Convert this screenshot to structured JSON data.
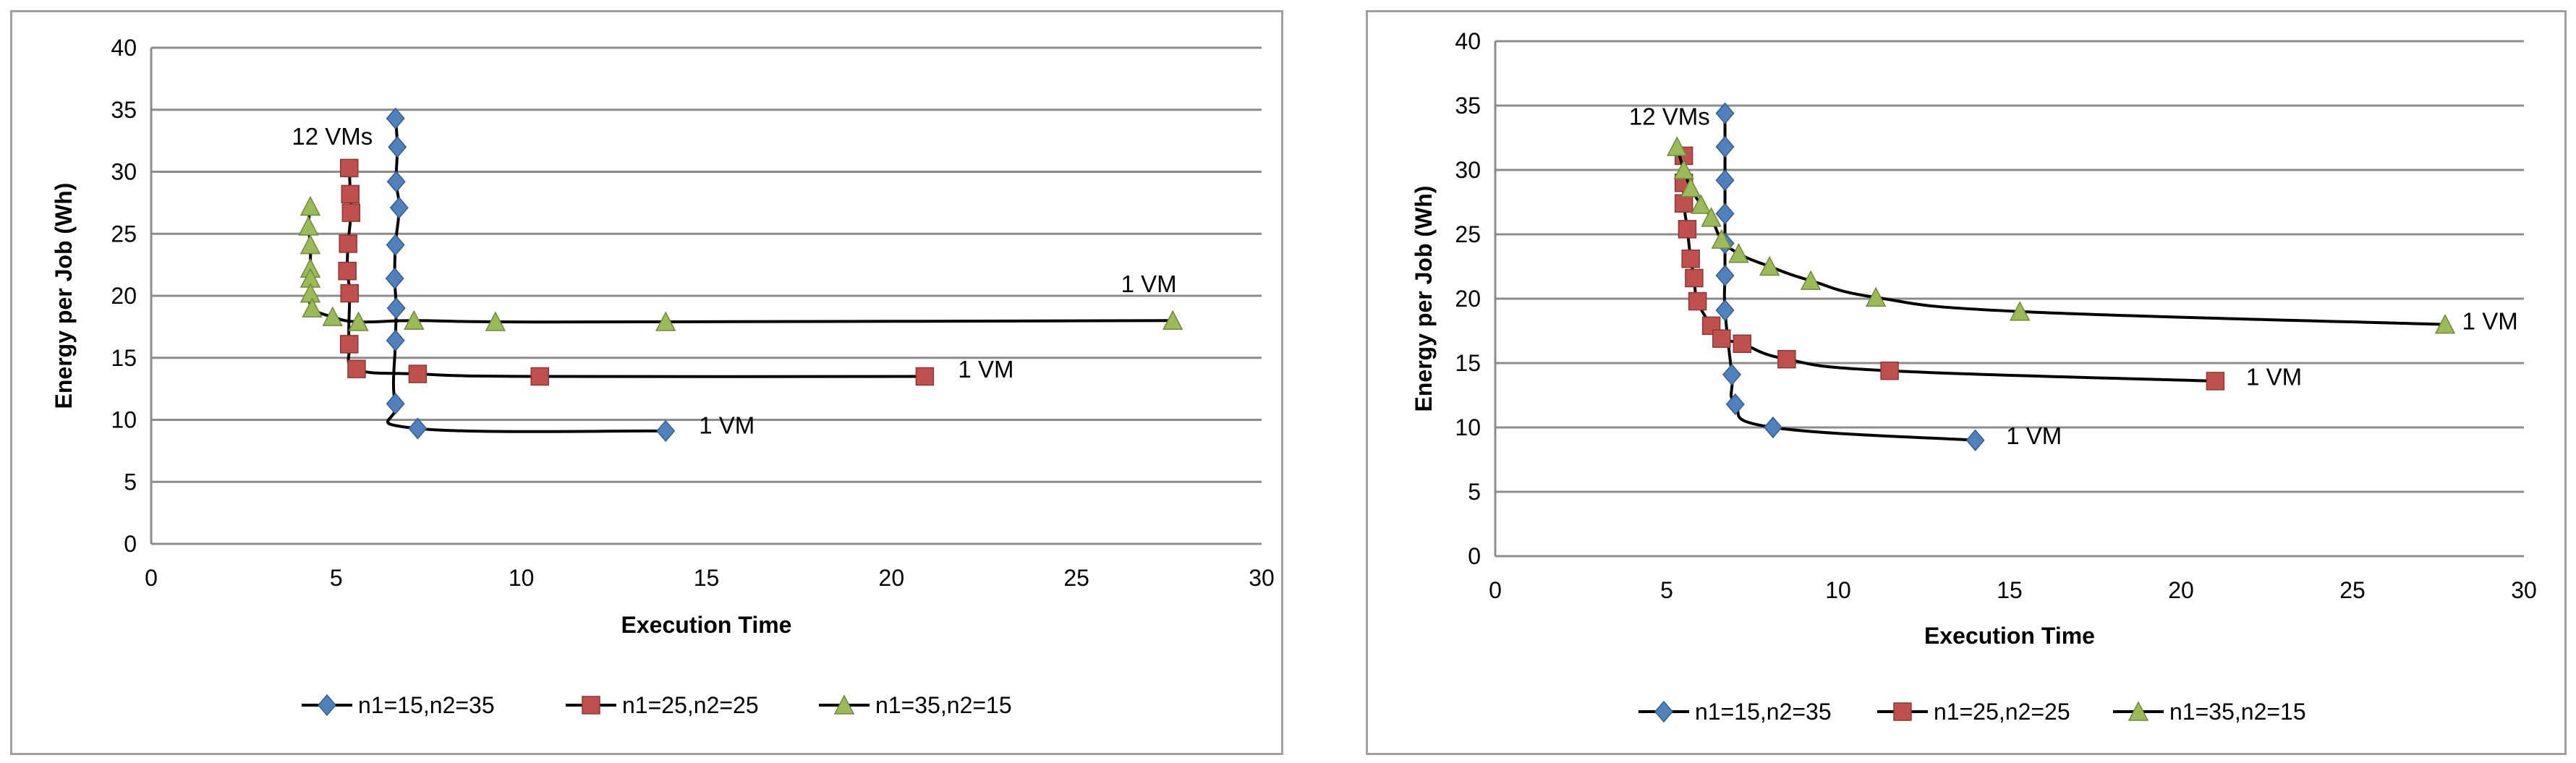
{
  "charts": [
    {
      "type": "scatter",
      "xlabel": "Execution Time",
      "ylabel": "Energy per Job (Wh)",
      "xlim": [
        0,
        30
      ],
      "ylim": [
        0,
        40
      ],
      "xticks": [
        0,
        5,
        10,
        15,
        20,
        25,
        30
      ],
      "yticks": [
        0,
        5,
        10,
        15,
        20,
        25,
        30,
        35,
        40
      ],
      "grid": "horizontal",
      "legend": "bottom",
      "annotations": [
        {
          "text": "12 VMs",
          "x": 3.8,
          "y": 32.2
        },
        {
          "text": "1 VM",
          "x": 26.2,
          "y": 20.3
        },
        {
          "text": "1 VM",
          "x": 21.8,
          "y": 13.4
        },
        {
          "text": "1 VM",
          "x": 14.8,
          "y": 8.9
        }
      ],
      "series": [
        {
          "name": "n1=15,n2=35",
          "color": "#4f81bd",
          "marker": "diamond",
          "x": [
            6.6,
            6.65,
            6.62,
            6.7,
            6.6,
            6.58,
            6.62,
            6.6,
            6.6,
            7.2,
            13.9
          ],
          "y": [
            34.3,
            32.0,
            29.2,
            27.1,
            24.1,
            21.4,
            19.0,
            16.4,
            11.3,
            9.3,
            9.1
          ]
        },
        {
          "name": "n1=25,n2=25",
          "color": "#c0504d",
          "marker": "square",
          "x": [
            5.35,
            5.38,
            5.4,
            5.32,
            5.3,
            5.36,
            5.35,
            5.55,
            7.2,
            10.5,
            20.9
          ],
          "y": [
            30.3,
            28.2,
            26.7,
            24.2,
            22.0,
            20.2,
            16.1,
            14.1,
            13.7,
            13.5,
            13.5
          ]
        },
        {
          "name": "n1=35,n2=15",
          "color": "#9bbb59",
          "marker": "triangle",
          "x": [
            4.3,
            4.25,
            4.3,
            4.3,
            4.3,
            4.3,
            4.35,
            4.9,
            5.6,
            7.1,
            9.3,
            13.9,
            27.6
          ],
          "y": [
            27.2,
            25.6,
            24.1,
            22.2,
            21.4,
            20.2,
            19.0,
            18.3,
            17.9,
            18.0,
            17.9,
            17.9,
            18.0
          ]
        }
      ]
    },
    {
      "type": "scatter",
      "xlabel": "Execution Time",
      "ylabel": "Energy per Job (Wh)",
      "xlim": [
        0,
        30
      ],
      "ylim": [
        0,
        40
      ],
      "xticks": [
        0,
        5,
        10,
        15,
        20,
        25,
        30
      ],
      "yticks": [
        0,
        5,
        10,
        15,
        20,
        25,
        30,
        35,
        40
      ],
      "grid": "horizontal",
      "legend": "bottom",
      "annotations": [
        {
          "text": "12 VMs",
          "x": 3.9,
          "y": 33.5
        },
        {
          "text": "1 VM",
          "x": 28.2,
          "y": 17.6
        },
        {
          "text": "1 VM",
          "x": 21.9,
          "y": 13.3
        },
        {
          "text": "1 VM",
          "x": 14.9,
          "y": 8.7
        }
      ],
      "series": [
        {
          "name": "n1=15,n2=35",
          "color": "#4f81bd",
          "marker": "diamond",
          "x": [
            6.7,
            6.7,
            6.7,
            6.7,
            6.7,
            6.7,
            6.7,
            6.9,
            7.0,
            8.1,
            14.0
          ],
          "y": [
            34.4,
            31.8,
            29.2,
            26.6,
            24.3,
            21.8,
            19.1,
            14.1,
            11.8,
            10.0,
            9.0
          ]
        },
        {
          "name": "n1=25,n2=25",
          "color": "#c0504d",
          "marker": "square",
          "x": [
            5.5,
            5.5,
            5.5,
            5.6,
            5.7,
            5.8,
            5.9,
            6.3,
            6.6,
            7.2,
            8.5,
            11.5,
            21.0
          ],
          "y": [
            31.1,
            29.0,
            27.4,
            25.4,
            23.1,
            21.6,
            19.8,
            17.9,
            16.9,
            16.5,
            15.3,
            14.4,
            13.6
          ]
        },
        {
          "name": "n1=35,n2=15",
          "color": "#9bbb59",
          "marker": "triangle",
          "x": [
            5.3,
            5.5,
            5.7,
            6.0,
            6.3,
            6.6,
            7.1,
            8.0,
            9.2,
            11.1,
            15.3,
            27.7
          ],
          "y": [
            31.8,
            30.0,
            28.6,
            27.3,
            26.3,
            24.6,
            23.5,
            22.5,
            21.4,
            20.1,
            19.0,
            18.0
          ]
        }
      ]
    }
  ]
}
